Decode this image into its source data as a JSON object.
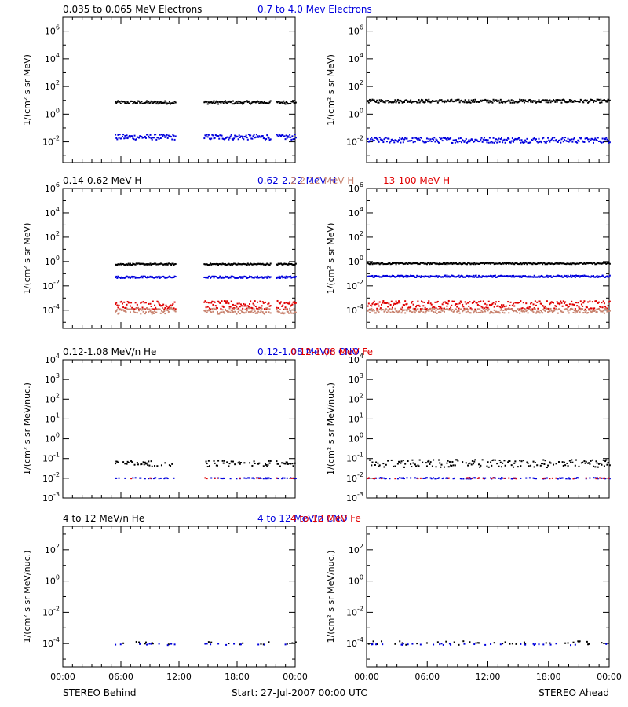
{
  "footer": {
    "left": "STEREO Behind",
    "center": "Start: 27-Jul-2007 00:00 UTC",
    "right": "STEREO Ahead"
  },
  "colors": {
    "black": "#000000",
    "blue": "#0000dd",
    "tan": "#c8826e",
    "red": "#e00000"
  },
  "chart_data": [
    {
      "type": "scatter",
      "row": 0,
      "spacecraft": "STEREO Behind",
      "titles": [
        {
          "text": "0.035 to 0.065 MeV Electrons",
          "color": "#000000"
        },
        {
          "text": "0.7 to 4.0 Mev Electrons",
          "color": "#0000dd"
        }
      ],
      "ylabel": "1/(cm² s sr MeV)",
      "yscale": "log",
      "ylim_exp": [
        -3.5,
        7
      ],
      "ytick_exps": [
        -2,
        0,
        2,
        4,
        6
      ],
      "xlim_hours": [
        0,
        24
      ],
      "xtick_labels": [
        "00:00",
        "06:00",
        "12:00",
        "18:00",
        "00:00"
      ],
      "data_gaps_hours": [
        [
          0,
          5.3
        ],
        [
          11.6,
          14.5
        ],
        [
          21.4,
          22.0
        ]
      ],
      "series": [
        {
          "color": "#000000",
          "level": 8,
          "spread_dec": 0.12
        },
        {
          "color": "#0000dd",
          "level": 0.025,
          "spread_dec": 0.2
        }
      ]
    },
    {
      "type": "scatter",
      "row": 0,
      "spacecraft": "STEREO Ahead",
      "titles": [],
      "ylabel": "1/(cm² s sr MeV)",
      "yscale": "log",
      "ylim_exp": [
        -3.5,
        7
      ],
      "ytick_exps": [
        -2,
        0,
        2,
        4,
        6
      ],
      "xlim_hours": [
        0,
        24
      ],
      "xtick_labels": [
        "00:00",
        "06:00",
        "12:00",
        "18:00",
        "00:00"
      ],
      "data_gaps_hours": [],
      "series": [
        {
          "color": "#000000",
          "level": 10,
          "spread_dec": 0.12
        },
        {
          "color": "#0000dd",
          "level": 0.015,
          "spread_dec": 0.2
        }
      ]
    },
    {
      "type": "scatter",
      "row": 1,
      "spacecraft": "STEREO Behind",
      "titles": [
        {
          "text": "0.14-0.62 MeV H",
          "color": "#000000"
        },
        {
          "text": "0.62-2.22 MeV H",
          "color": "#0000dd"
        },
        {
          "text": "2.2-12 MeV H",
          "color": "#c8826e"
        },
        {
          "text": "13-100 MeV H",
          "color": "#e00000"
        }
      ],
      "ylabel": "1/(cm² s sr MeV)",
      "yscale": "log",
      "ylim_exp": [
        -5.5,
        6
      ],
      "ytick_exps": [
        -4,
        -2,
        0,
        2,
        4,
        6
      ],
      "xlim_hours": [
        0,
        24
      ],
      "xtick_labels": [
        "00:00",
        "06:00",
        "12:00",
        "18:00",
        "00:00"
      ],
      "data_gaps_hours": [
        [
          0,
          5.3
        ],
        [
          11.6,
          14.5
        ],
        [
          21.4,
          22.0
        ]
      ],
      "series": [
        {
          "color": "#000000",
          "level": 0.7,
          "spread_dec": 0.06
        },
        {
          "color": "#0000dd",
          "level": 0.06,
          "spread_dec": 0.08
        },
        {
          "color": "#e00000",
          "level": 0.0003,
          "spread_dec": 0.35
        },
        {
          "color": "#c8826e",
          "level": 0.0001,
          "spread_dec": 0.25
        }
      ]
    },
    {
      "type": "scatter",
      "row": 1,
      "spacecraft": "STEREO Ahead",
      "titles": [],
      "ylabel": "1/(cm² s sr MeV)",
      "yscale": "log",
      "ylim_exp": [
        -5.5,
        6
      ],
      "ytick_exps": [
        -4,
        -2,
        0,
        2,
        4,
        6
      ],
      "xlim_hours": [
        0,
        24
      ],
      "xtick_labels": [
        "00:00",
        "06:00",
        "12:00",
        "18:00",
        "00:00"
      ],
      "data_gaps_hours": [],
      "series": [
        {
          "color": "#000000",
          "level": 0.8,
          "spread_dec": 0.06
        },
        {
          "color": "#0000dd",
          "level": 0.07,
          "spread_dec": 0.08
        },
        {
          "color": "#e00000",
          "level": 0.0003,
          "spread_dec": 0.35
        },
        {
          "color": "#c8826e",
          "level": 0.0001,
          "spread_dec": 0.2
        }
      ]
    },
    {
      "type": "scatter",
      "row": 2,
      "spacecraft": "STEREO Behind",
      "titles": [
        {
          "text": "0.12-1.08 MeV/n He",
          "color": "#000000"
        },
        {
          "text": "0.12-1.08 MeV/n CNO",
          "color": "#0000dd"
        },
        {
          "text": "0.12-1.08 MeV Fe",
          "color": "#e00000"
        }
      ],
      "ylabel": "1/(cm² s sr MeV/nuc.)",
      "yscale": "log",
      "ylim_exp": [
        -3,
        4
      ],
      "ytick_exps": [
        -3,
        -2,
        -1,
        0,
        1,
        2,
        3,
        4
      ],
      "xlim_hours": [
        0,
        24
      ],
      "xtick_labels": [
        "00:00",
        "06:00",
        "12:00",
        "18:00",
        "00:00"
      ],
      "data_gaps_hours": [
        [
          0,
          5.3
        ],
        [
          11.6,
          14.5
        ],
        [
          21.4,
          22.0
        ]
      ],
      "series": [
        {
          "color": "#000000",
          "level": 0.06,
          "spread_dec": 0.15,
          "sparse": 0.55
        },
        {
          "color": "#0000dd",
          "level": 0.011,
          "spread_dec": 0.02,
          "sparse": 0.35
        },
        {
          "color": "#e00000",
          "level": 0.011,
          "spread_dec": 0.02,
          "sparse": 0.08
        }
      ]
    },
    {
      "type": "scatter",
      "row": 2,
      "spacecraft": "STEREO Ahead",
      "titles": [],
      "ylabel": "1/(cm² s sr MeV/nuc.)",
      "yscale": "log",
      "ylim_exp": [
        -3,
        4
      ],
      "ytick_exps": [
        -3,
        -2,
        -1,
        0,
        1,
        2,
        3,
        4
      ],
      "xlim_hours": [
        0,
        24
      ],
      "xtick_labels": [
        "00:00",
        "06:00",
        "12:00",
        "18:00",
        "00:00"
      ],
      "data_gaps_hours": [],
      "series": [
        {
          "color": "#000000",
          "level": 0.06,
          "spread_dec": 0.2,
          "sparse": 0.6
        },
        {
          "color": "#0000dd",
          "level": 0.011,
          "spread_dec": 0.03,
          "sparse": 0.35
        },
        {
          "color": "#e00000",
          "level": 0.011,
          "spread_dec": 0.02,
          "sparse": 0.1
        }
      ]
    },
    {
      "type": "scatter",
      "row": 3,
      "spacecraft": "STEREO Behind",
      "titles": [
        {
          "text": "4 to 12 MeV/n He",
          "color": "#000000"
        },
        {
          "text": "4 to 12 MeV/n CNO",
          "color": "#0000dd"
        },
        {
          "text": "4 to 12 MeV Fe",
          "color": "#e00000"
        }
      ],
      "ylabel": "1/(cm² s sr MeV/nuc.)",
      "yscale": "log",
      "ylim_exp": [
        -5.5,
        3.5
      ],
      "ytick_exps": [
        -4,
        -2,
        0,
        2
      ],
      "xlim_hours": [
        0,
        24
      ],
      "xtick_labels": [
        "00:00",
        "06:00",
        "12:00",
        "18:00",
        "00:00"
      ],
      "data_gaps_hours": [
        [
          0,
          5.3
        ],
        [
          11.6,
          14.5
        ],
        [
          21.4,
          22.0
        ]
      ],
      "series": [
        {
          "color": "#000000",
          "level": 0.00012,
          "spread_dec": 0.1,
          "sparse": 0.12
        },
        {
          "color": "#0000dd",
          "level": 0.0001,
          "spread_dec": 0.05,
          "sparse": 0.08
        }
      ]
    },
    {
      "type": "scatter",
      "row": 3,
      "spacecraft": "STEREO Ahead",
      "titles": [],
      "ylabel": "1/(cm² s sr MeV/nuc.)",
      "yscale": "log",
      "ylim_exp": [
        -5.5,
        3.5
      ],
      "ytick_exps": [
        -4,
        -2,
        0,
        2
      ],
      "xlim_hours": [
        0,
        24
      ],
      "xtick_labels": [
        "00:00",
        "06:00",
        "12:00",
        "18:00",
        "00:00"
      ],
      "data_gaps_hours": [],
      "series": [
        {
          "color": "#000000",
          "level": 0.00012,
          "spread_dec": 0.12,
          "sparse": 0.12
        },
        {
          "color": "#0000dd",
          "level": 0.0001,
          "spread_dec": 0.05,
          "sparse": 0.12
        }
      ]
    }
  ]
}
